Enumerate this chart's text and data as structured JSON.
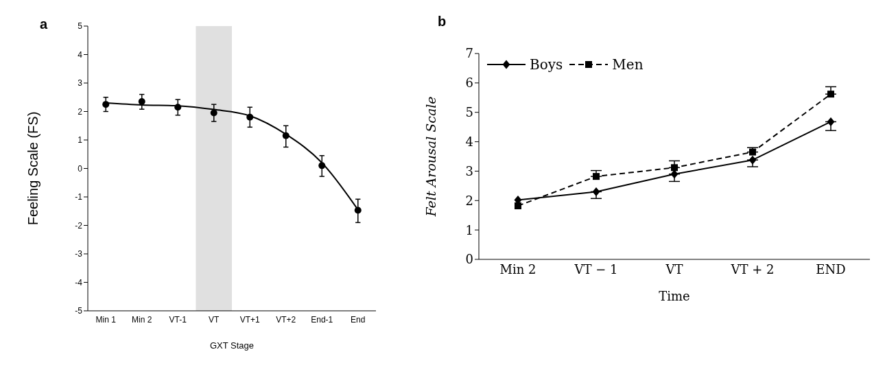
{
  "chart_data": [
    {
      "type": "scatter",
      "title": "a",
      "xlabel": "GXT Stage",
      "ylabel": "Feeling Scale (FS)",
      "categories": [
        "Min 1",
        "Min 2",
        "VT-1",
        "VT",
        "VT+1",
        "VT+2",
        "End-1",
        "End"
      ],
      "series": [
        {
          "type": "scatter",
          "color": "#000000",
          "marker": "circle",
          "values": [
            2.25,
            2.35,
            2.15,
            1.95,
            1.8,
            1.15,
            0.1,
            -1.47
          ],
          "errors": [
            [
              2.0,
              2.5
            ],
            [
              2.08,
              2.6
            ],
            [
              1.87,
              2.42
            ],
            [
              1.65,
              2.25
            ],
            [
              1.45,
              2.15
            ],
            [
              0.75,
              1.5
            ],
            [
              -0.28,
              0.45
            ],
            [
              -1.9,
              -1.08
            ]
          ]
        },
        {
          "type": "line",
          "color": "#000000",
          "marker": "none",
          "line_style": "solid",
          "values": [
            2.3,
            2.23,
            2.2,
            2.07,
            1.85,
            1.2,
            0.2,
            -1.45
          ]
        }
      ],
      "ylim": [
        -5,
        5
      ],
      "yticks": [
        -5,
        -4,
        -3,
        -2,
        -1,
        0,
        1,
        2,
        3,
        4,
        5
      ],
      "bands": [
        {
          "axis": "x",
          "from": "VT",
          "to": "VT",
          "color": "#e0e0e0"
        }
      ],
      "grid": false,
      "legend": false
    },
    {
      "type": "line",
      "title": "b",
      "xlabel": "Time",
      "ylabel": "Felt Arousal Scale",
      "categories": [
        "Min 2",
        "VT − 1",
        "VT",
        "VT + 2",
        "END"
      ],
      "series": [
        {
          "name": "Boys",
          "color": "#000000",
          "marker": "diamond",
          "line_style": "solid",
          "values": [
            2.02,
            2.3,
            2.9,
            3.38,
            4.68
          ],
          "errors": [
            null,
            [
              2.07,
              2.3
            ],
            [
              2.65,
              2.9
            ],
            [
              3.15,
              3.38
            ],
            [
              4.38,
              4.68
            ]
          ]
        },
        {
          "name": "Men",
          "color": "#000000",
          "marker": "square",
          "line_style": "dashed",
          "values": [
            1.82,
            2.82,
            3.12,
            3.65,
            5.62
          ],
          "errors": [
            null,
            [
              2.82,
              3.02
            ],
            [
              3.12,
              3.35
            ],
            [
              3.65,
              3.8
            ],
            [
              5.62,
              5.87
            ]
          ]
        }
      ],
      "ylim": [
        0,
        7
      ],
      "yticks": [
        0,
        1,
        2,
        3,
        4,
        5,
        6,
        7
      ],
      "grid": false,
      "legend": "top left"
    }
  ]
}
